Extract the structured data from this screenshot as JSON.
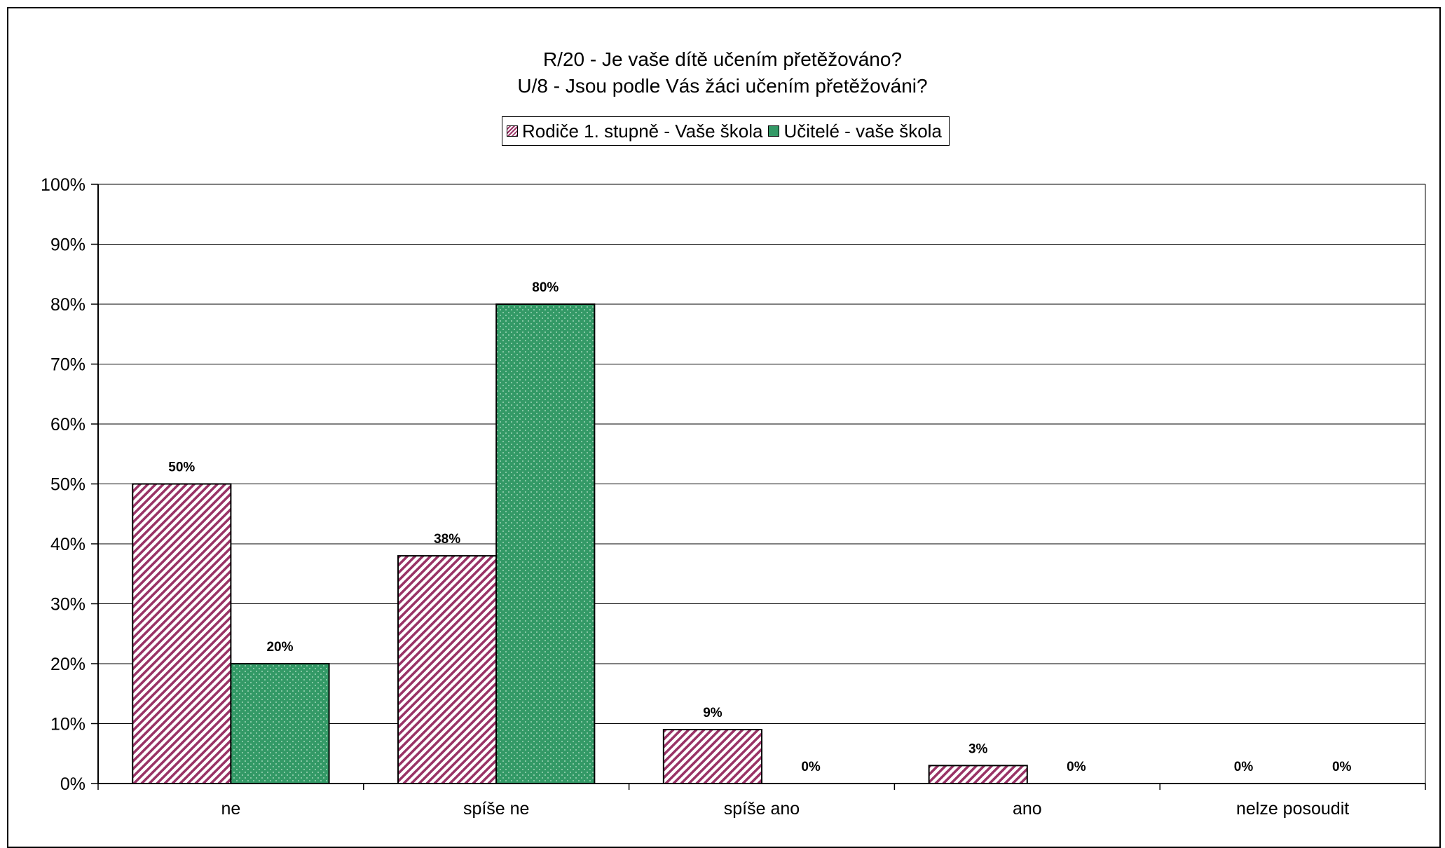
{
  "chart_data": {
    "type": "bar",
    "title": [
      "R/20 - Je vaše dítě učením přetěžováno?",
      "U/8 - Jsou podle Vás žáci učením přetěžováni?"
    ],
    "categories": [
      "ne",
      "spíše ne",
      "spíše ano",
      "ano",
      "nelze posoudit"
    ],
    "series": [
      {
        "name": "Rodiče 1. stupně - Vaše škola",
        "values": [
          50,
          38,
          9,
          3,
          0
        ],
        "labels": [
          "50%",
          "38%",
          "9%",
          "3%",
          "0%"
        ],
        "color": "#993366",
        "pattern": "diagonal-stripes"
      },
      {
        "name": "Učitelé - vaše škola",
        "values": [
          20,
          80,
          0,
          0,
          0
        ],
        "labels": [
          "20%",
          "80%",
          "0%",
          "0%",
          "0%"
        ],
        "color": "#339966",
        "pattern": "dotted"
      }
    ],
    "ylim": [
      0,
      100
    ],
    "yticks": [
      "0%",
      "10%",
      "20%",
      "30%",
      "40%",
      "50%",
      "60%",
      "70%",
      "80%",
      "90%",
      "100%"
    ],
    "xlabel": "",
    "ylabel": "",
    "grid": true,
    "legend_position": "top-center"
  }
}
